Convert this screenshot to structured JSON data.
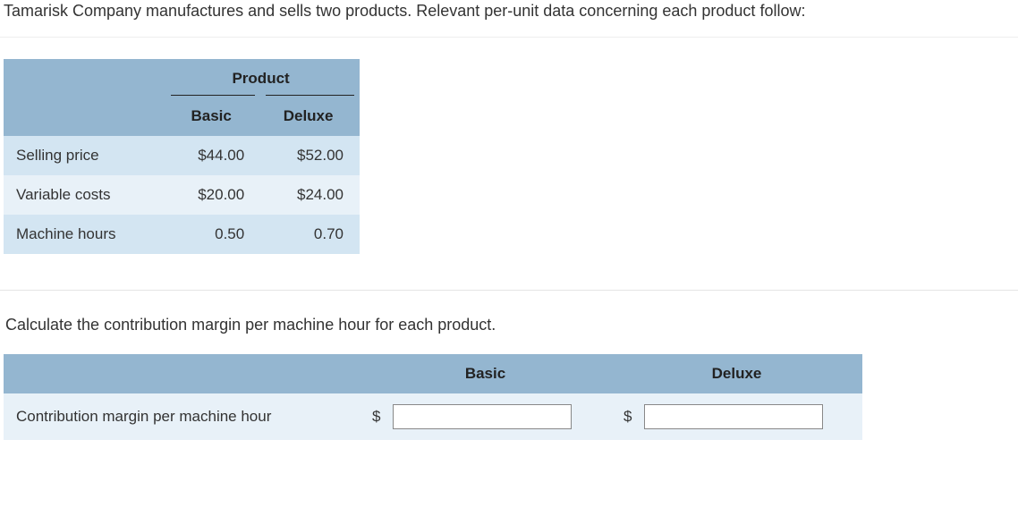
{
  "intro_text": "Tamarisk Company manufactures and sells two products. Relevant per-unit data concerning each product follow:",
  "table1": {
    "spanner_label": "Product",
    "col_basic": "Basic",
    "col_deluxe": "Deluxe",
    "rows": [
      {
        "label": "Selling price",
        "basic": "$44.00",
        "deluxe": "$52.00"
      },
      {
        "label": "Variable costs",
        "basic": "$20.00",
        "deluxe": "$24.00"
      },
      {
        "label": "Machine hours",
        "basic": "0.50",
        "deluxe": "0.70"
      }
    ],
    "header_bg": "#94b6d0",
    "row_odd_bg": "#d3e5f2",
    "row_even_bg": "#e8f1f8"
  },
  "prompt_text": "Calculate the contribution margin per machine hour for each product.",
  "table2": {
    "col_basic": "Basic",
    "col_deluxe": "Deluxe",
    "row_label": "Contribution margin per machine hour",
    "currency_symbol": "$",
    "basic_value": "",
    "deluxe_value": "",
    "header_bg": "#94b6d0",
    "row_bg": "#e8f1f8"
  }
}
